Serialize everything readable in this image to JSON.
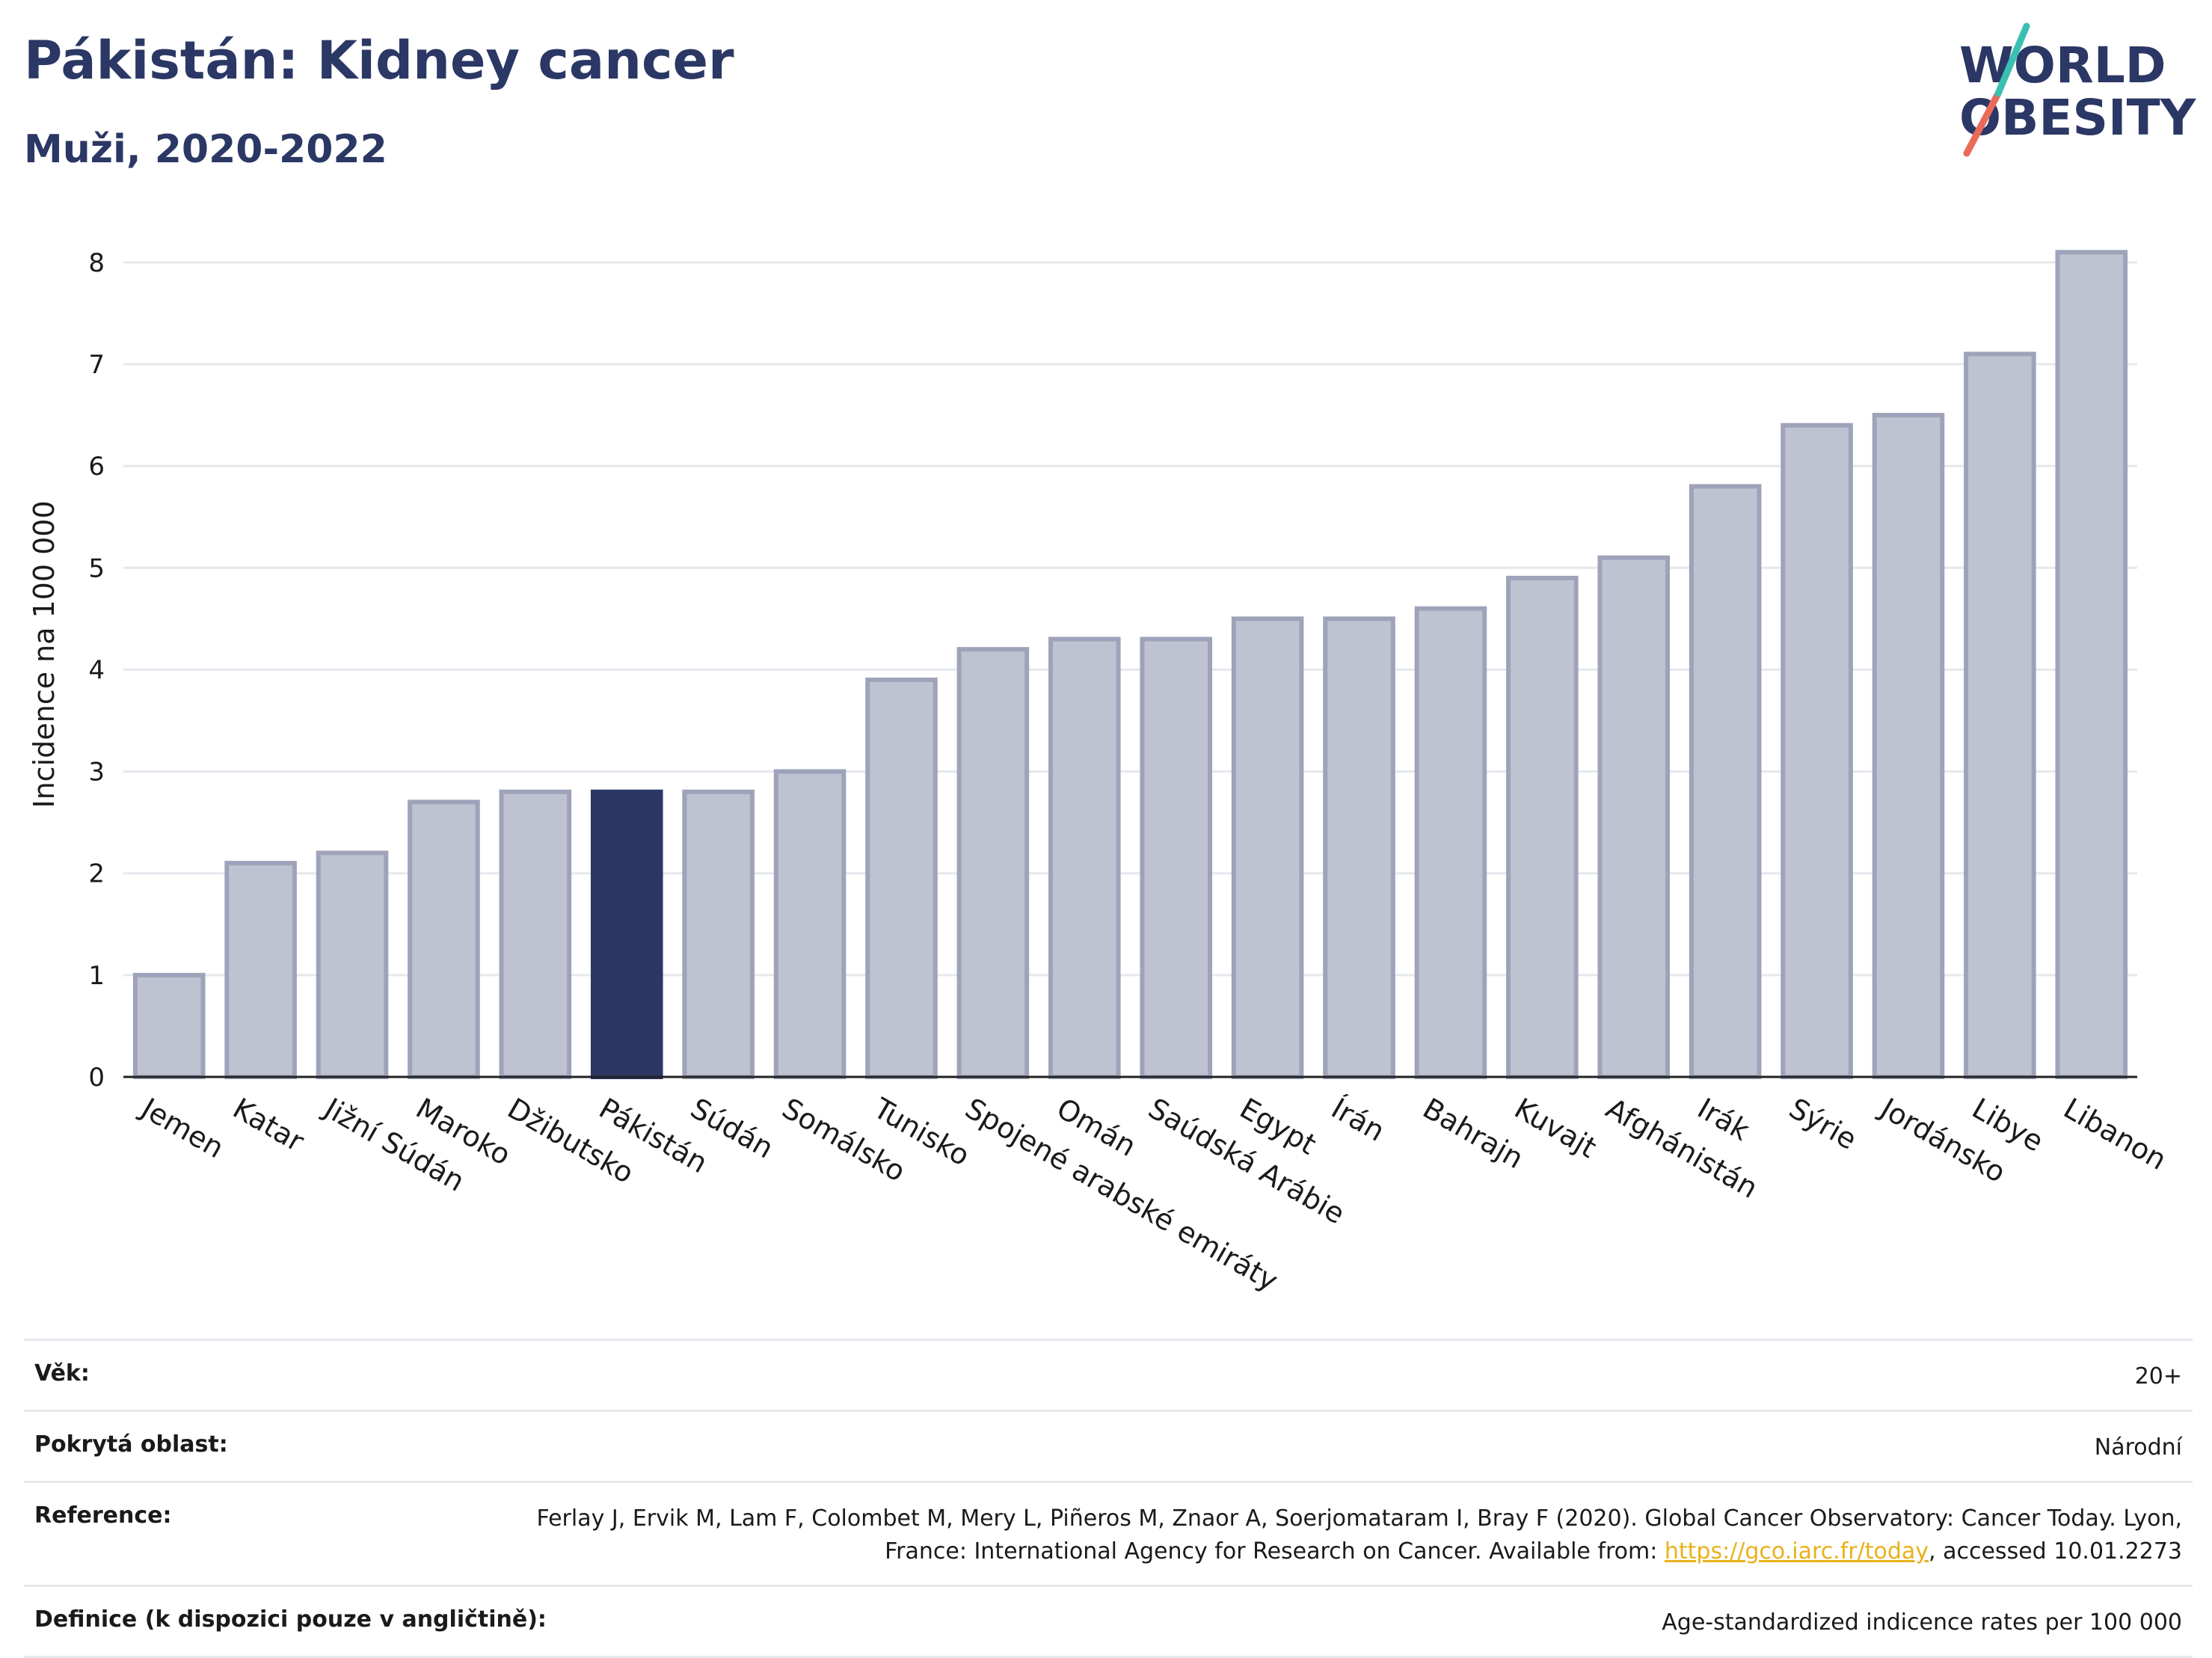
{
  "header": {
    "title": "Pákistán: Kidney cancer",
    "subtitle": "Muži, 2020-2022",
    "logo_line1": "WORLD",
    "logo_line2": "OBESITY"
  },
  "chart_data": {
    "type": "bar",
    "title": "Pákistán: Kidney cancer",
    "subtitle": "Muži, 2020-2022",
    "xlabel": "",
    "ylabel": "Incidence na 100 000",
    "ylim": [
      0,
      8.3
    ],
    "yticks": [
      0,
      1,
      2,
      3,
      4,
      5,
      6,
      7,
      8
    ],
    "grid": true,
    "highlight": "Pákistán",
    "colors": {
      "bar": "#bfc2d0",
      "bar_edge": "#9ea3ba",
      "highlight": "#2b3764",
      "grid": "#e6e8ee"
    },
    "categories": [
      "Jemen",
      "Katar",
      "Jižní Súdán",
      "Maroko",
      "Džibutsko",
      "Pákistán",
      "Súdán",
      "Somálsko",
      "Tunisko",
      "Spojené arabské emiráty",
      "Omán",
      "Saúdská Arábie",
      "Egypt",
      "Írán",
      "Bahrajn",
      "Kuvajt",
      "Afghánistán",
      "Irák",
      "Sýrie",
      "Jordánsko",
      "Libye",
      "Libanon"
    ],
    "values": [
      1.0,
      2.1,
      2.2,
      2.7,
      2.8,
      2.8,
      2.8,
      3.0,
      3.9,
      4.2,
      4.3,
      4.3,
      4.5,
      4.5,
      4.6,
      4.9,
      5.1,
      5.8,
      6.4,
      6.5,
      7.1,
      8.1
    ]
  },
  "meta": {
    "age_label": "Věk:",
    "age_value": "20+",
    "area_label": "Pokrytá oblast:",
    "area_value": "Národní",
    "reference_label": "Reference:",
    "reference_text_before": "Ferlay J, Ervik M, Lam F, Colombet M, Mery L, Piñeros M, Znaor A, Soerjomataram I, Bray F (2020). Global Cancer Observatory: Cancer Today. Lyon, France: International Agency for Research on Cancer. Available from: ",
    "reference_link": "https://gco.iarc.fr/today",
    "reference_text_after": ", accessed 10.01.2273",
    "definition_label": "Definice (k dispozici pouze v angličtině):",
    "definition_value": "Age-standardized indicence rates per 100 000"
  }
}
